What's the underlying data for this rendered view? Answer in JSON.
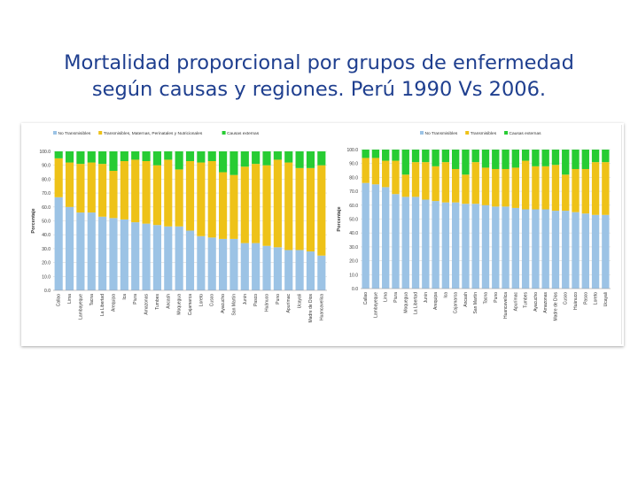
{
  "title_line1": "Mortalidad proporcional por grupos de enfermedad",
  "title_line2": "según causas y regiones. Perú 1990 Vs 2006.",
  "colors": {
    "blue": "#9cc3e5",
    "yellow": "#eec218",
    "green": "#27cc33",
    "title": "#1f3f8f"
  },
  "chart_data": [
    {
      "type": "bar",
      "stacked": true,
      "ylabel": "Porcentaje",
      "ylim": [
        0,
        100
      ],
      "yticks": [
        "0.0",
        "10.0",
        "20.0",
        "30.0",
        "40.0",
        "50.0",
        "60.0",
        "70.0",
        "80.0",
        "90.0",
        "100.0"
      ],
      "legend": [
        "No Transmisibles",
        "Transmisibles, Maternas, Perinatales y Nutricionales",
        "Causas externas"
      ],
      "categories": [
        "Callao",
        "Lima",
        "Lambayeque",
        "Tacna",
        "La Libertad",
        "Arequipa",
        "Ica",
        "Piura",
        "Amazonas",
        "Tumbes",
        "Ancash",
        "Moquegua",
        "Cajamarca",
        "Loreto",
        "Cusco",
        "Ayacucho",
        "San Martín",
        "Junín",
        "Pasco",
        "Huánuco",
        "Puno",
        "Apurímac",
        "Ucayali",
        "Madre de Dios",
        "Huancavelica"
      ],
      "series": [
        {
          "name": "No Transmisibles",
          "values": [
            67,
            60,
            56,
            56,
            53,
            52,
            51,
            49,
            48,
            47,
            46,
            46,
            43,
            39,
            38,
            37,
            37,
            34,
            34,
            32,
            31,
            29,
            29,
            28,
            25
          ]
        },
        {
          "name": "Transmisibles, Maternas, Perinatales y Nutricionales",
          "values": [
            28,
            32,
            35,
            36,
            38,
            34,
            42,
            45,
            45,
            43,
            48,
            41,
            50,
            53,
            55,
            48,
            46,
            55,
            57,
            58,
            63,
            63,
            59,
            60,
            65
          ]
        },
        {
          "name": "Causas externas",
          "values": [
            5,
            8,
            9,
            8,
            9,
            14,
            7,
            6,
            7,
            10,
            6,
            13,
            7,
            8,
            7,
            15,
            17,
            11,
            9,
            10,
            6,
            8,
            12,
            12,
            10
          ]
        }
      ]
    },
    {
      "type": "bar",
      "stacked": true,
      "ylabel": "Porcentaje",
      "ylim": [
        0,
        100
      ],
      "yticks": [
        "0.0",
        "10.0",
        "20.0",
        "30.0",
        "40.0",
        "50.0",
        "60.0",
        "70.0",
        "80.0",
        "90.0",
        "100.0"
      ],
      "legend": [
        "No Transmisibles",
        "Transmisibles",
        "Causas externas"
      ],
      "categories": [
        "Callao",
        "Lambayeque",
        "Lima",
        "Piura",
        "Moquegua",
        "La Libertad",
        "Junín",
        "Arequipa",
        "Ica",
        "Cajamarca",
        "Ancash",
        "San Martín",
        "Tacna",
        "Puno",
        "Huancavelica",
        "Apurímac",
        "Tumbes",
        "Ayacucho",
        "Amazonas",
        "Madre de Dios",
        "Cusco",
        "Huánuco",
        "Pasco",
        "Loreto",
        "Ucayali"
      ],
      "series": [
        {
          "name": "No Transmisibles",
          "values": [
            76,
            75,
            73,
            68,
            66,
            66,
            64,
            63,
            62,
            62,
            61,
            61,
            60,
            59,
            59,
            58,
            57,
            57,
            57,
            56,
            56,
            55,
            54,
            53,
            53
          ]
        },
        {
          "name": "Transmisibles",
          "values": [
            18,
            19,
            19,
            24,
            16,
            25,
            27,
            25,
            29,
            24,
            21,
            30,
            27,
            27,
            27,
            29,
            35,
            31,
            31,
            33,
            26,
            31,
            32,
            38,
            38
          ]
        },
        {
          "name": "Causas externas",
          "values": [
            6,
            6,
            8,
            8,
            18,
            9,
            9,
            12,
            9,
            14,
            18,
            9,
            13,
            14,
            14,
            13,
            8,
            12,
            12,
            11,
            18,
            14,
            14,
            9,
            9
          ]
        }
      ]
    }
  ]
}
